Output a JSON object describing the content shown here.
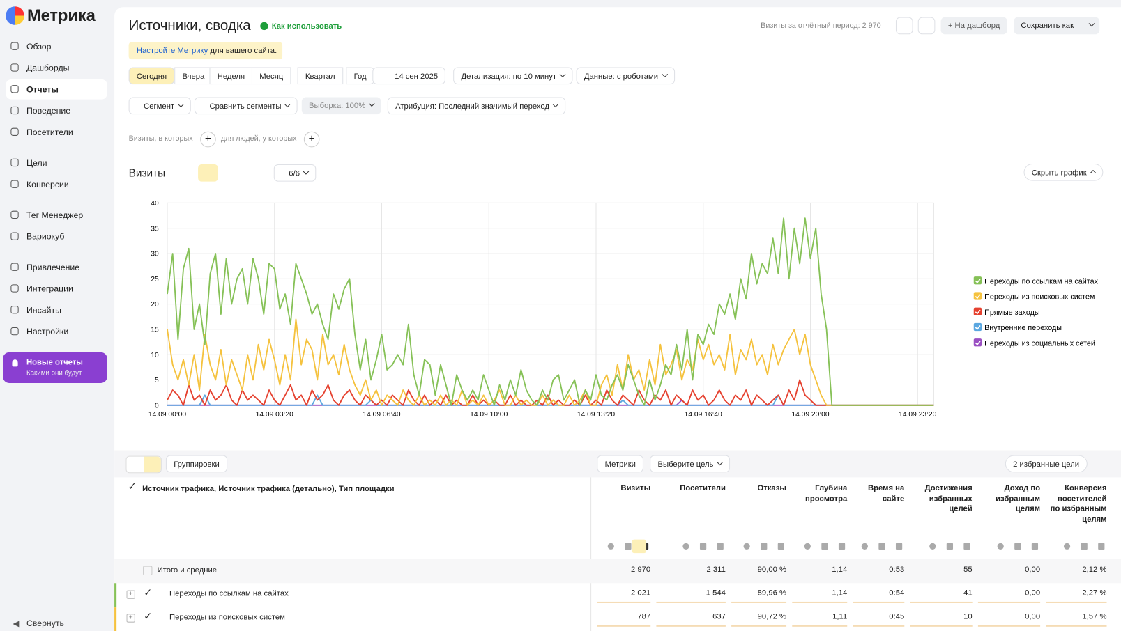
{
  "sidebar": {
    "logo": "Метрика",
    "items": [
      "Обзор",
      "Дашборды",
      "Отчеты",
      "Поведение",
      "Посетители",
      "Цели",
      "Конверсии",
      "Тег Менеджер",
      "Вариокуб",
      "Привлечение",
      "Интеграции",
      "Инсайты",
      "Настройки"
    ],
    "promo_title": "Новые отчеты",
    "promo_subtitle": "Какими они будут",
    "collapse": "Свернуть"
  },
  "header": {
    "title": "Источники, сводка",
    "help": "Как использовать",
    "visits_info": "Визиты за отчётный период: 2 970",
    "dashboard": "На дашборд",
    "save": "Сохранить как",
    "notice_link": "Настройте Метрику",
    "notice_text": "для вашего сайта."
  },
  "periods": [
    "Сегодня",
    "Вчера",
    "Неделя",
    "Месяц",
    "Квартал",
    "Год"
  ],
  "date": "14 сен 2025",
  "detail": "Детализация: по 10 минут",
  "data_mode": "Данные: с роботами",
  "filters": [
    "Сегмент",
    "Сравнить сегменты",
    "Выборка: 100%",
    "Атрибуция: Последний значимый переход"
  ],
  "conditions": [
    "Визиты, в которых",
    "для людей, у которых"
  ],
  "chart_panel": {
    "label": "Визиты",
    "count": "6/6",
    "hide": "Скрыть график"
  },
  "chart_data": {
    "type": "line",
    "categories": [
      "14.09 00:00",
      null,
      null,
      null,
      null,
      null,
      null,
      null,
      null,
      null,
      null,
      null,
      null,
      null,
      null,
      null,
      null,
      null,
      null,
      null,
      "14.09 03:20",
      null,
      null,
      null,
      null,
      null,
      null,
      null,
      null,
      null,
      null,
      null,
      null,
      null,
      null,
      null,
      null,
      null,
      null,
      null,
      "14.09 06:40",
      null,
      null,
      null,
      null,
      null,
      null,
      null,
      null,
      null,
      null,
      null,
      null,
      null,
      null,
      null,
      null,
      null,
      null,
      null,
      "14.09 10:00",
      null,
      null,
      null,
      null,
      null,
      null,
      null,
      null,
      null,
      null,
      null,
      null,
      null,
      null,
      null,
      null,
      null,
      null,
      null,
      "14.09 13:20",
      null,
      null,
      null,
      null,
      null,
      null,
      null,
      null,
      null,
      null,
      null,
      null,
      null,
      null,
      null,
      null,
      null,
      null,
      null,
      "14.09 16:40",
      null,
      null,
      null,
      null,
      null,
      null,
      null,
      null,
      null,
      null,
      null,
      null,
      null,
      null,
      null,
      null,
      null,
      null,
      null,
      "14.09 20:00",
      null,
      null,
      null,
      null,
      null,
      null,
      null,
      null,
      null,
      null,
      null,
      null,
      null,
      null,
      null,
      null,
      null,
      null,
      null,
      "14.09 23:20",
      null,
      null,
      null
    ],
    "ylim": [
      0,
      40
    ],
    "yticks": [
      0,
      5,
      10,
      15,
      20,
      25,
      30,
      35,
      40
    ],
    "grid": true,
    "legend": "right",
    "series": [
      {
        "name": "Переходы по ссылкам на сайтах",
        "color": "#86c157",
        "values": [
          22,
          30,
          13,
          27,
          31,
          15,
          20,
          12,
          26,
          30,
          18,
          29,
          20,
          25,
          27,
          20,
          29,
          25,
          18,
          28,
          27,
          19,
          22,
          16,
          28,
          25,
          22,
          18,
          20,
          16,
          13,
          22,
          19,
          23,
          25,
          14,
          7,
          13,
          5,
          9,
          14,
          7,
          8,
          10,
          8,
          16,
          6,
          2,
          9,
          8,
          2,
          8,
          4,
          0,
          6,
          3,
          1,
          3,
          1,
          6,
          3,
          0,
          4,
          1,
          5,
          2,
          7,
          3,
          1,
          0,
          3,
          1,
          5,
          6,
          1,
          3,
          5,
          0,
          3,
          1,
          6,
          2,
          1,
          4,
          6,
          3,
          8,
          5,
          2,
          0,
          5,
          1,
          4,
          8,
          6,
          12,
          7,
          15,
          5,
          14,
          12,
          16,
          14,
          20,
          18,
          22,
          17,
          25,
          21,
          30,
          24,
          28,
          26,
          33,
          26,
          37,
          25,
          35,
          28,
          37,
          29,
          35,
          22,
          15,
          0,
          0,
          0,
          0,
          0,
          0,
          0,
          0,
          0,
          0,
          0,
          0,
          0,
          0,
          0,
          0,
          0,
          0,
          0,
          0
        ]
      },
      {
        "name": "Переходы из поисковых систем",
        "color": "#f5c23e",
        "values": [
          15,
          8,
          5,
          9,
          4,
          10,
          3,
          14,
          8,
          5,
          11,
          4,
          9,
          6,
          3,
          10,
          5,
          12,
          7,
          13,
          9,
          4,
          10,
          5,
          17,
          8,
          13,
          11,
          5,
          14,
          8,
          10,
          6,
          12,
          7,
          4,
          2,
          5,
          1,
          3,
          0,
          2,
          1,
          0,
          3,
          1,
          0,
          2,
          0,
          1,
          0,
          2,
          0,
          1,
          0,
          3,
          0,
          1,
          0,
          2,
          0,
          1,
          3,
          0,
          0,
          2,
          0,
          1,
          0,
          0,
          2,
          0,
          1,
          0,
          0,
          2,
          0,
          1,
          3,
          0,
          0,
          4,
          6,
          2,
          8,
          3,
          10,
          5,
          7,
          3,
          9,
          4,
          12,
          6,
          8,
          11,
          5,
          9,
          7,
          13,
          9,
          12,
          8,
          10,
          7,
          14,
          6,
          11,
          9,
          13,
          8,
          10,
          6,
          12,
          8,
          11,
          13,
          15,
          10,
          14,
          8,
          5,
          2,
          0,
          0,
          0,
          0,
          0,
          0,
          0,
          0,
          0,
          0,
          0,
          0,
          0,
          0,
          0,
          0,
          0,
          0,
          0,
          0,
          0
        ]
      },
      {
        "name": "Прямые заходы",
        "color": "#e5412f",
        "values": [
          1,
          3,
          2,
          0,
          4,
          1,
          2,
          0,
          3,
          1,
          2,
          4,
          1,
          0,
          3,
          1,
          2,
          1,
          0,
          3,
          1,
          0,
          2,
          4,
          1,
          2,
          0,
          3,
          1,
          2,
          4,
          1,
          0,
          2,
          3,
          1,
          0,
          2,
          1,
          0,
          1,
          0,
          2,
          1,
          0,
          3,
          1,
          0,
          2,
          0,
          1,
          0,
          2,
          0,
          1,
          0,
          0,
          2,
          0,
          1,
          0,
          1,
          0,
          0,
          2,
          0,
          1,
          0,
          0,
          1,
          0,
          2,
          0,
          1,
          0,
          0,
          1,
          0,
          2,
          0,
          1,
          0,
          3,
          1,
          0,
          2,
          1,
          0,
          3,
          1,
          0,
          2,
          1,
          3,
          0,
          2,
          1,
          0,
          3,
          1,
          2,
          0,
          1,
          3,
          1,
          0,
          2,
          1,
          3,
          0,
          2,
          1,
          0,
          1,
          2,
          0,
          3,
          1,
          5,
          2,
          1,
          0,
          0,
          0,
          0,
          0,
          0,
          0,
          0,
          0,
          0,
          0,
          0,
          0,
          0,
          0,
          0,
          0,
          0,
          0,
          0,
          0,
          0,
          0
        ]
      },
      {
        "name": "Внутренние переходы",
        "color": "#5aa7e0",
        "values": [
          0,
          0,
          0,
          0,
          0,
          0,
          0,
          2,
          0,
          0,
          0,
          0,
          0,
          0,
          0,
          0,
          0,
          0,
          0,
          0,
          0,
          0,
          0,
          0,
          0,
          0,
          0,
          0,
          2,
          0,
          0,
          0,
          0,
          0,
          0,
          0,
          0,
          0,
          1,
          0,
          0,
          0,
          0,
          0,
          0,
          0,
          0,
          0,
          0,
          0,
          0,
          0,
          0,
          0,
          0,
          0,
          0,
          0,
          0,
          0,
          0,
          0,
          0,
          0,
          0,
          0,
          0,
          0,
          0,
          0,
          0,
          0,
          0,
          0,
          0,
          0,
          0,
          0,
          0,
          0,
          0,
          0,
          0,
          0,
          0,
          1,
          0,
          0,
          0,
          0,
          0,
          0,
          0,
          0,
          0,
          0,
          0,
          0,
          0,
          0,
          0,
          0,
          0,
          0,
          0,
          0,
          0,
          0,
          0,
          0,
          0,
          0,
          0,
          0,
          2,
          0,
          0,
          0,
          0,
          0,
          0,
          0,
          0,
          0,
          0,
          0,
          0,
          0,
          0,
          0,
          0,
          0,
          0,
          0,
          0,
          0,
          0,
          0,
          0,
          0,
          0,
          0,
          0,
          0
        ]
      },
      {
        "name": "Переходы из социальных сетей",
        "color": "#9a4fc2",
        "values": [
          0,
          0,
          0,
          0,
          0,
          0,
          0,
          0,
          0,
          0,
          0,
          0,
          0,
          0,
          0,
          0,
          0,
          0,
          0,
          0,
          0,
          0,
          0,
          0,
          0,
          0,
          0,
          0,
          0,
          0,
          0,
          0,
          0,
          0,
          0,
          0,
          0,
          0,
          0,
          0,
          0,
          0,
          0,
          0,
          0,
          0,
          0,
          0,
          0,
          0,
          1,
          0,
          0,
          0,
          0,
          0,
          0,
          0,
          0,
          0,
          0,
          0,
          0,
          0,
          0,
          0,
          0,
          0,
          0,
          0,
          0,
          0,
          1,
          0,
          0,
          0,
          0,
          0,
          0,
          0,
          0,
          0,
          0,
          0,
          0,
          0,
          0,
          0,
          0,
          0,
          0,
          0,
          0,
          0,
          0,
          0,
          1,
          0,
          0,
          0,
          0,
          0,
          0,
          0,
          0,
          0,
          0,
          0,
          0,
          0,
          0,
          0,
          0,
          0,
          0,
          0,
          0,
          0,
          0,
          0,
          0,
          0,
          0,
          0,
          0,
          0,
          0,
          0,
          0,
          0,
          0,
          0,
          0,
          0,
          0,
          0,
          0,
          0,
          0,
          0,
          0,
          0,
          0,
          0
        ]
      }
    ]
  },
  "table": {
    "groupings": "Группировки",
    "metrics": "Метрики",
    "goal": "Выберите цель",
    "favorites": "2 избранные цели",
    "dimension": "Источник трафика, Источник трафика (детально), Тип площадки",
    "columns": [
      "Визиты",
      "Посетители",
      "Отказы",
      "Глубина просмотра",
      "Время на сайте",
      "Достижения избранных целей",
      "Доход по избранным целям",
      "Конверсия посетителей по избранным целям"
    ],
    "rows": [
      [
        "Итого и средние",
        "2 970",
        "2 311",
        "90,00 %",
        "1,14",
        "0:53",
        "55",
        "0,00",
        "2,12 %"
      ],
      [
        "Переходы по ссылкам на сайтах",
        "2 021",
        "1 544",
        "89,96 %",
        "1,14",
        "0:54",
        "41",
        "0,00",
        "2,27 %"
      ],
      [
        "Переходы из поисковых систем",
        "787",
        "637",
        "90,72 %",
        "1,11",
        "0:45",
        "10",
        "0,00",
        "1,57 %"
      ]
    ]
  }
}
